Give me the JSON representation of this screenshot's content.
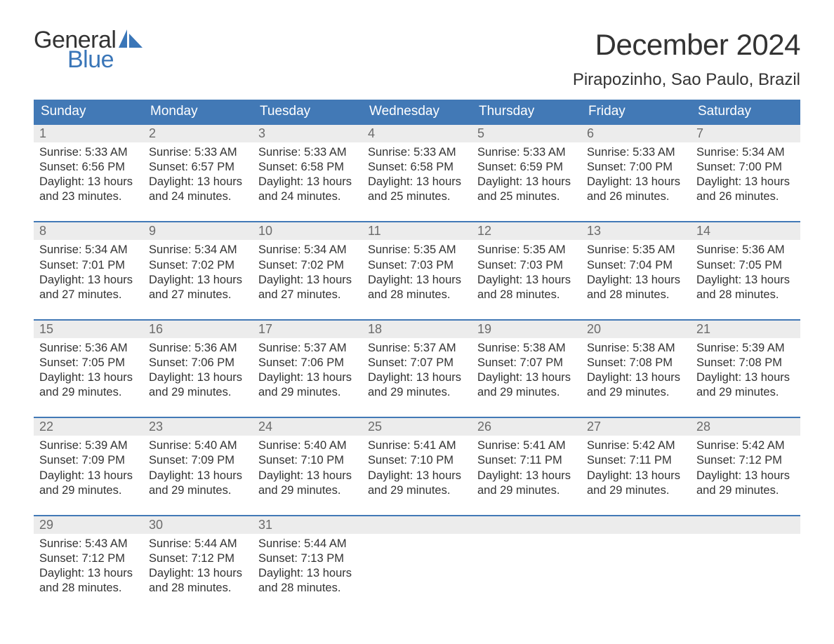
{
  "logo": {
    "text_top": "General",
    "text_bottom": "Blue",
    "icon_color": "#3a76b8"
  },
  "title": "December 2024",
  "location": "Pirapozinho, Sao Paulo, Brazil",
  "colors": {
    "header_bg": "#4279b6",
    "header_text": "#ffffff",
    "daynum_bg": "#ececec",
    "daynum_text": "#6b6b6b",
    "body_text": "#333333",
    "rule": "#4279b6",
    "page_bg": "#ffffff"
  },
  "typography": {
    "title_fontsize": 42,
    "location_fontsize": 24,
    "weekday_fontsize": 19,
    "daynum_fontsize": 18,
    "body_fontsize": 16.5,
    "logo_fontsize": 34
  },
  "weekdays": [
    "Sunday",
    "Monday",
    "Tuesday",
    "Wednesday",
    "Thursday",
    "Friday",
    "Saturday"
  ],
  "weeks": [
    [
      {
        "n": "1",
        "sunrise": "5:33 AM",
        "sunset": "6:56 PM",
        "dl1": "13 hours",
        "dl2": "and 23 minutes."
      },
      {
        "n": "2",
        "sunrise": "5:33 AM",
        "sunset": "6:57 PM",
        "dl1": "13 hours",
        "dl2": "and 24 minutes."
      },
      {
        "n": "3",
        "sunrise": "5:33 AM",
        "sunset": "6:58 PM",
        "dl1": "13 hours",
        "dl2": "and 24 minutes."
      },
      {
        "n": "4",
        "sunrise": "5:33 AM",
        "sunset": "6:58 PM",
        "dl1": "13 hours",
        "dl2": "and 25 minutes."
      },
      {
        "n": "5",
        "sunrise": "5:33 AM",
        "sunset": "6:59 PM",
        "dl1": "13 hours",
        "dl2": "and 25 minutes."
      },
      {
        "n": "6",
        "sunrise": "5:33 AM",
        "sunset": "7:00 PM",
        "dl1": "13 hours",
        "dl2": "and 26 minutes."
      },
      {
        "n": "7",
        "sunrise": "5:34 AM",
        "sunset": "7:00 PM",
        "dl1": "13 hours",
        "dl2": "and 26 minutes."
      }
    ],
    [
      {
        "n": "8",
        "sunrise": "5:34 AM",
        "sunset": "7:01 PM",
        "dl1": "13 hours",
        "dl2": "and 27 minutes."
      },
      {
        "n": "9",
        "sunrise": "5:34 AM",
        "sunset": "7:02 PM",
        "dl1": "13 hours",
        "dl2": "and 27 minutes."
      },
      {
        "n": "10",
        "sunrise": "5:34 AM",
        "sunset": "7:02 PM",
        "dl1": "13 hours",
        "dl2": "and 27 minutes."
      },
      {
        "n": "11",
        "sunrise": "5:35 AM",
        "sunset": "7:03 PM",
        "dl1": "13 hours",
        "dl2": "and 28 minutes."
      },
      {
        "n": "12",
        "sunrise": "5:35 AM",
        "sunset": "7:03 PM",
        "dl1": "13 hours",
        "dl2": "and 28 minutes."
      },
      {
        "n": "13",
        "sunrise": "5:35 AM",
        "sunset": "7:04 PM",
        "dl1": "13 hours",
        "dl2": "and 28 minutes."
      },
      {
        "n": "14",
        "sunrise": "5:36 AM",
        "sunset": "7:05 PM",
        "dl1": "13 hours",
        "dl2": "and 28 minutes."
      }
    ],
    [
      {
        "n": "15",
        "sunrise": "5:36 AM",
        "sunset": "7:05 PM",
        "dl1": "13 hours",
        "dl2": "and 29 minutes."
      },
      {
        "n": "16",
        "sunrise": "5:36 AM",
        "sunset": "7:06 PM",
        "dl1": "13 hours",
        "dl2": "and 29 minutes."
      },
      {
        "n": "17",
        "sunrise": "5:37 AM",
        "sunset": "7:06 PM",
        "dl1": "13 hours",
        "dl2": "and 29 minutes."
      },
      {
        "n": "18",
        "sunrise": "5:37 AM",
        "sunset": "7:07 PM",
        "dl1": "13 hours",
        "dl2": "and 29 minutes."
      },
      {
        "n": "19",
        "sunrise": "5:38 AM",
        "sunset": "7:07 PM",
        "dl1": "13 hours",
        "dl2": "and 29 minutes."
      },
      {
        "n": "20",
        "sunrise": "5:38 AM",
        "sunset": "7:08 PM",
        "dl1": "13 hours",
        "dl2": "and 29 minutes."
      },
      {
        "n": "21",
        "sunrise": "5:39 AM",
        "sunset": "7:08 PM",
        "dl1": "13 hours",
        "dl2": "and 29 minutes."
      }
    ],
    [
      {
        "n": "22",
        "sunrise": "5:39 AM",
        "sunset": "7:09 PM",
        "dl1": "13 hours",
        "dl2": "and 29 minutes."
      },
      {
        "n": "23",
        "sunrise": "5:40 AM",
        "sunset": "7:09 PM",
        "dl1": "13 hours",
        "dl2": "and 29 minutes."
      },
      {
        "n": "24",
        "sunrise": "5:40 AM",
        "sunset": "7:10 PM",
        "dl1": "13 hours",
        "dl2": "and 29 minutes."
      },
      {
        "n": "25",
        "sunrise": "5:41 AM",
        "sunset": "7:10 PM",
        "dl1": "13 hours",
        "dl2": "and 29 minutes."
      },
      {
        "n": "26",
        "sunrise": "5:41 AM",
        "sunset": "7:11 PM",
        "dl1": "13 hours",
        "dl2": "and 29 minutes."
      },
      {
        "n": "27",
        "sunrise": "5:42 AM",
        "sunset": "7:11 PM",
        "dl1": "13 hours",
        "dl2": "and 29 minutes."
      },
      {
        "n": "28",
        "sunrise": "5:42 AM",
        "sunset": "7:12 PM",
        "dl1": "13 hours",
        "dl2": "and 29 minutes."
      }
    ],
    [
      {
        "n": "29",
        "sunrise": "5:43 AM",
        "sunset": "7:12 PM",
        "dl1": "13 hours",
        "dl2": "and 28 minutes."
      },
      {
        "n": "30",
        "sunrise": "5:44 AM",
        "sunset": "7:12 PM",
        "dl1": "13 hours",
        "dl2": "and 28 minutes."
      },
      {
        "n": "31",
        "sunrise": "5:44 AM",
        "sunset": "7:13 PM",
        "dl1": "13 hours",
        "dl2": "and 28 minutes."
      },
      null,
      null,
      null,
      null
    ]
  ],
  "labels": {
    "sunrise_prefix": "Sunrise: ",
    "sunset_prefix": "Sunset: ",
    "daylight_prefix": "Daylight: "
  }
}
